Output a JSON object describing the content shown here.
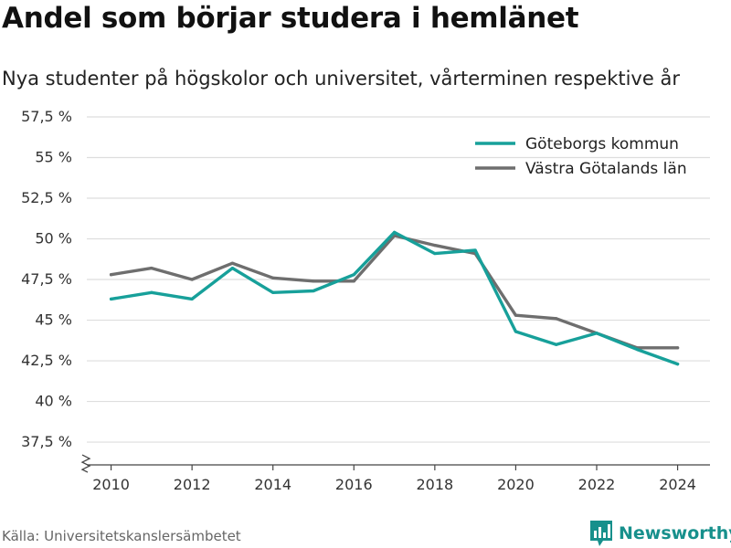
{
  "title": "Andel som börjar studera i hemlänet",
  "subtitle": "Nya studenter på högskolor och universitet, vårterminen respektive år",
  "source": "Källa: Universitetskanslersämbetet",
  "brand": {
    "name": "Newsworthy",
    "icon": "newsworthy-logo-icon",
    "color": "#17908c"
  },
  "chart_data": {
    "type": "line",
    "x": [
      2010,
      2011,
      2012,
      2013,
      2014,
      2015,
      2016,
      2017,
      2018,
      2019,
      2020,
      2021,
      2022,
      2023,
      2024
    ],
    "x_ticks": [
      2010,
      2012,
      2014,
      2016,
      2018,
      2020,
      2022,
      2024
    ],
    "x_tick_labels": [
      "2010",
      "2012",
      "2014",
      "2016",
      "2018",
      "2020",
      "2022",
      "2024"
    ],
    "y_ticks": [
      37.5,
      40,
      42.5,
      45,
      47.5,
      50,
      52.5,
      55,
      57.5
    ],
    "y_tick_labels": [
      "37,5 %",
      "40 %",
      "42,5 %",
      "45 %",
      "47,5 %",
      "50 %",
      "52,5 %",
      "55 %",
      "57,5 %"
    ],
    "ylim": [
      36.1,
      57.5
    ],
    "xlim": [
      2009.4,
      2024.8
    ],
    "y_axis_break": true,
    "grid": "horizontal",
    "legend_position": "top-right",
    "series": [
      {
        "name": "Göteborgs kommun",
        "color": "#17a09a",
        "values": [
          46.3,
          46.7,
          46.3,
          48.2,
          46.7,
          46.8,
          47.8,
          50.4,
          49.1,
          49.3,
          44.3,
          43.5,
          44.2,
          43.2,
          42.3
        ]
      },
      {
        "name": "Västra Götalands län",
        "color": "#6e6e6e",
        "values": [
          47.8,
          48.2,
          47.5,
          48.5,
          47.6,
          47.4,
          47.4,
          50.2,
          49.6,
          49.1,
          45.3,
          45.1,
          44.2,
          43.3,
          43.3
        ]
      }
    ]
  }
}
